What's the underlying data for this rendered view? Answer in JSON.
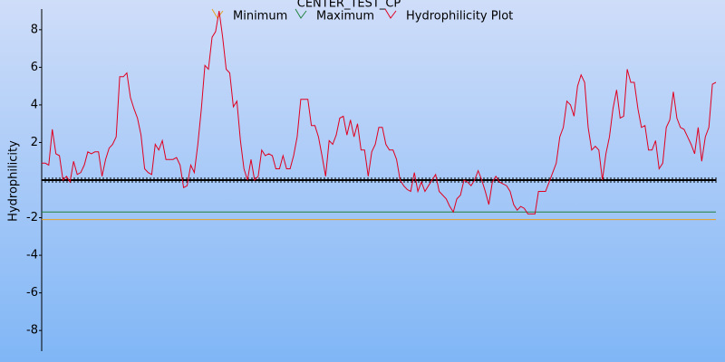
{
  "chart_data": {
    "type": "line",
    "title": "CENTER_TEST_CP",
    "ylabel": "Hydrophilicity",
    "ylim": [
      -9.1,
      9.1
    ],
    "yticks": [
      -8,
      -6,
      -4,
      -2,
      2,
      4,
      6,
      8
    ],
    "series": [
      {
        "name": "Minimum",
        "color": "#e8a020",
        "values": [
          -2.1
        ]
      },
      {
        "name": "Maximum",
        "color": "#208040",
        "values": [
          -1.7
        ]
      },
      {
        "name": "Hydrophilicity Plot",
        "color": "#e00020",
        "values": [
          0.9,
          0.9,
          0.8,
          2.7,
          1.4,
          1.3,
          0,
          0.2,
          -0.1,
          1.0,
          0.3,
          0.4,
          0.8,
          1.5,
          1.4,
          1.5,
          1.5,
          0.2,
          1.1,
          1.7,
          1.9,
          2.3,
          5.5,
          5.5,
          5.7,
          4.4,
          3.8,
          3.3,
          2.4,
          0.6,
          0.4,
          0.3,
          1.9,
          1.6,
          2.1,
          1.1,
          1.1,
          1.1,
          1.2,
          0.8,
          -0.4,
          -0.3,
          0.8,
          0.4,
          1.9,
          3.8,
          6.1,
          5.9,
          7.6,
          7.9,
          9.0,
          7.6,
          5.9,
          5.7,
          3.9,
          4.2,
          2.1,
          0.6,
          0,
          1.1,
          0,
          0.2,
          1.6,
          1.3,
          1.4,
          1.3,
          0.6,
          0.6,
          1.3,
          0.6,
          0.6,
          1.3,
          2.3,
          4.3,
          4.3,
          4.3,
          2.9,
          2.9,
          2.3,
          1.3,
          0.2,
          2.1,
          1.9,
          2.4,
          3.3,
          3.4,
          2.4,
          3.2,
          2.3,
          3.0,
          1.6,
          1.6,
          0.2,
          1.5,
          1.9,
          2.8,
          2.8,
          1.9,
          1.6,
          1.6,
          1.1,
          0,
          -0.3,
          -0.5,
          -0.6,
          0.4,
          -0.6,
          -0.1,
          -0.6,
          -0.3,
          0,
          0.3,
          -0.6,
          -0.8,
          -1.0,
          -1.4,
          -1.7,
          -1.0,
          -0.8,
          0,
          -0.1,
          -0.3,
          0,
          0.5,
          0,
          -0.6,
          -1.3,
          -0.1,
          0.2,
          -0.1,
          -0.2,
          -0.3,
          -0.6,
          -1.3,
          -1.6,
          -1.4,
          -1.5,
          -1.8,
          -1.8,
          -1.8,
          -0.6,
          -0.6,
          -0.6,
          -0.1,
          0.4,
          0.9,
          2.3,
          2.8,
          4.2,
          4.0,
          3.4,
          5.0,
          5.6,
          5.2,
          2.8,
          1.6,
          1.8,
          1.6,
          0,
          1.4,
          2.3,
          3.8,
          4.8,
          3.3,
          3.4,
          5.9,
          5.2,
          5.2,
          3.8,
          2.8,
          2.9,
          1.6,
          1.6,
          2.1,
          0.6,
          0.9,
          2.8,
          3.2,
          4.7,
          3.3,
          2.8,
          2.7,
          2.3,
          1.9,
          1.4,
          2.8,
          1.0,
          2.3,
          2.8,
          5.1,
          5.2
        ]
      }
    ]
  }
}
